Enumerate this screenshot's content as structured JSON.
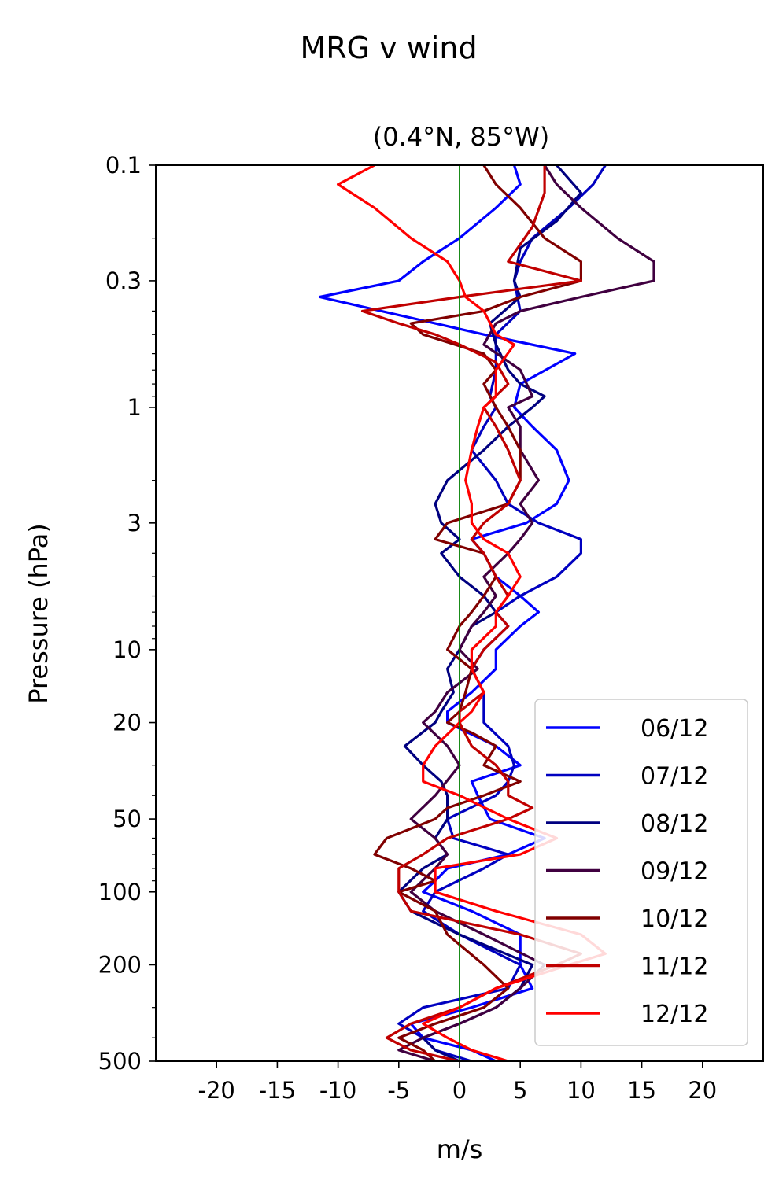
{
  "chart_data": {
    "type": "line",
    "suptitle": "MRG v wind",
    "title": "(0.4°N, 85°W)",
    "xlabel": "m/s",
    "ylabel": "Pressure (hPa)",
    "xlim": [
      -25,
      25
    ],
    "ylim": [
      500,
      0.1
    ],
    "yscale": "log",
    "xticks": [
      -20,
      -15,
      -10,
      -5,
      0,
      5,
      10,
      15,
      20
    ],
    "xtick_labels": [
      "-20",
      "-15",
      "-10",
      "-5",
      "0",
      "5",
      "10",
      "15",
      "20"
    ],
    "yticks": [
      0.1,
      0.3,
      1,
      3,
      10,
      20,
      50,
      100,
      200,
      500
    ],
    "ytick_labels": [
      "0.1",
      "0.3",
      "1",
      "3",
      "10",
      "20",
      "50",
      "100",
      "200",
      "500"
    ],
    "zero_line_color": "#008000",
    "legend_position": "lower right",
    "grid": false,
    "series": [
      {
        "name": "06/12",
        "color": "#0000ff",
        "p": [
          0.1,
          0.12,
          0.15,
          0.2,
          0.25,
          0.3,
          0.35,
          0.5,
          0.6,
          0.8,
          1,
          1.2,
          1.5,
          2,
          2.5,
          3,
          3.5,
          4,
          5,
          6,
          7,
          8,
          10,
          12,
          15,
          18,
          20,
          25,
          30,
          35,
          40,
          50,
          60,
          70,
          80,
          90,
          100,
          120,
          150,
          200,
          250,
          300,
          350,
          400,
          450,
          500
        ],
        "v": [
          4.5,
          5,
          3,
          0,
          -3,
          -5,
          -11.5,
          2,
          9.5,
          5,
          4.5,
          6,
          8,
          9,
          8,
          5.5,
          1,
          2,
          3,
          5,
          6.5,
          5,
          3,
          3,
          1,
          -1,
          -1,
          3,
          5,
          1,
          1.5,
          2.5,
          7,
          4,
          -1,
          -2,
          -3,
          1,
          5,
          5,
          6,
          1,
          -4,
          -3,
          1,
          3
        ]
      },
      {
        "name": "07/12",
        "color": "#0000c0",
        "p": [
          0.1,
          0.12,
          0.15,
          0.2,
          0.25,
          0.3,
          0.4,
          0.5,
          0.7,
          0.9,
          1,
          1.2,
          1.5,
          2,
          2.5,
          3,
          3.5,
          4,
          5,
          6,
          7,
          8,
          10,
          12,
          15,
          20,
          25,
          30,
          35,
          40,
          50,
          60,
          70,
          80,
          100,
          120,
          150,
          200,
          250,
          300,
          350,
          400,
          450,
          500
        ],
        "v": [
          12,
          11,
          9,
          6,
          5,
          4.5,
          5,
          3,
          3,
          2.5,
          3,
          2,
          1,
          3,
          4,
          6.5,
          10,
          10,
          8,
          5,
          3,
          4,
          2,
          1,
          2,
          2,
          4,
          4.5,
          4,
          3,
          -1,
          -0.5,
          4,
          2,
          -2,
          -3,
          0,
          5,
          4,
          -3,
          -5,
          -3,
          -2,
          1
        ]
      },
      {
        "name": "08/12",
        "color": "#000080",
        "p": [
          0.1,
          0.13,
          0.17,
          0.22,
          0.3,
          0.35,
          0.45,
          0.55,
          0.7,
          0.8,
          0.9,
          1,
          1.2,
          1.5,
          2,
          2.5,
          3,
          3.5,
          4,
          5,
          6,
          7,
          8,
          10,
          12,
          15,
          18,
          20,
          25,
          30,
          35,
          40,
          50,
          60,
          70,
          80,
          100,
          120,
          150,
          200,
          250,
          300,
          350,
          400,
          450,
          500
        ],
        "v": [
          8,
          10,
          8,
          5,
          4.5,
          5,
          2.5,
          3,
          4,
          5,
          7,
          6,
          4,
          2,
          -1,
          -2,
          -1.5,
          0,
          -1.5,
          0,
          2,
          3,
          1,
          0,
          -1,
          -0.5,
          -1.5,
          -2,
          -4.5,
          -3,
          -1.5,
          -1,
          -1,
          -2,
          -1,
          -3,
          -5,
          -4,
          0,
          6,
          5,
          3,
          0,
          -3,
          -2,
          0
        ]
      },
      {
        "name": "09/12",
        "color": "#400040",
        "p": [
          0.1,
          0.12,
          0.15,
          0.2,
          0.25,
          0.3,
          0.35,
          0.4,
          0.45,
          0.55,
          0.7,
          0.9,
          1,
          1.2,
          1.5,
          2,
          2.5,
          3,
          3.5,
          4,
          5,
          6,
          7,
          8,
          10,
          12,
          15,
          18,
          20,
          25,
          30,
          40,
          50,
          60,
          70,
          80,
          100,
          120,
          150,
          200,
          250,
          300,
          350,
          400,
          450,
          500
        ],
        "v": [
          7,
          8,
          10,
          13,
          16,
          16,
          10,
          5,
          3,
          2,
          5,
          6,
          4,
          5,
          5,
          6.5,
          5,
          6,
          5,
          4,
          2,
          3,
          2,
          1,
          0,
          1.5,
          -1,
          -2,
          -3,
          -1,
          0,
          -2,
          -4,
          -2,
          -1,
          -2,
          -4,
          -2,
          2,
          7,
          5,
          3,
          0,
          -3,
          -5,
          -2
        ]
      },
      {
        "name": "10/12",
        "color": "#800000",
        "p": [
          0.1,
          0.12,
          0.15,
          0.2,
          0.25,
          0.3,
          0.35,
          0.4,
          0.45,
          0.5,
          0.6,
          0.7,
          0.8,
          1,
          1.2,
          1.5,
          2,
          2.5,
          3,
          3.5,
          4,
          5,
          6,
          7,
          8,
          10,
          12,
          15,
          18,
          20,
          22,
          25,
          30,
          35,
          40,
          45,
          50,
          60,
          70,
          80,
          90,
          100,
          120,
          150,
          200,
          250,
          300,
          350,
          400,
          450,
          500
        ],
        "v": [
          2,
          3,
          5,
          7,
          10,
          10,
          5,
          2,
          -4,
          -3,
          2,
          3,
          2,
          3,
          4,
          5,
          5,
          4,
          -1,
          -2,
          2,
          3,
          2,
          1,
          0,
          -1,
          1,
          0.5,
          0,
          -1,
          1,
          3,
          2,
          5,
          2,
          -1,
          -2,
          -6,
          -7,
          -4,
          -2,
          -5,
          -2,
          -1,
          2,
          4,
          2,
          -2,
          -5,
          -3,
          -2
        ]
      },
      {
        "name": "11/12",
        "color": "#c00000",
        "p": [
          0.1,
          0.13,
          0.18,
          0.25,
          0.3,
          0.35,
          0.4,
          0.45,
          0.5,
          0.55,
          0.65,
          0.8,
          1,
          1.2,
          1.5,
          2,
          2.5,
          3,
          3.5,
          4,
          5,
          6,
          7,
          8,
          10,
          12,
          15,
          18,
          20,
          25,
          30,
          35,
          40,
          45,
          50,
          60,
          70,
          80,
          100,
          120,
          150,
          180,
          200,
          250,
          300,
          350,
          400,
          450,
          500
        ],
        "v": [
          7,
          7,
          6,
          4,
          10,
          0,
          -8,
          -5,
          -2,
          0,
          3,
          4,
          2,
          3,
          4,
          5,
          4,
          2,
          1,
          2,
          3,
          4,
          3,
          4,
          2,
          1,
          2,
          0,
          0,
          1,
          3,
          4,
          4,
          6,
          4,
          -1,
          -3,
          -5,
          -5,
          -4,
          5,
          10,
          8,
          3,
          0,
          -4,
          -6,
          -4,
          0
        ]
      },
      {
        "name": "12/12",
        "color": "#ff0000",
        "p": [
          0.1,
          0.12,
          0.15,
          0.2,
          0.25,
          0.3,
          0.35,
          0.4,
          0.5,
          0.55,
          0.7,
          0.9,
          1,
          1.2,
          1.5,
          2,
          2.5,
          3,
          3.5,
          4,
          5,
          6,
          7,
          8,
          10,
          12,
          15,
          18,
          20,
          25,
          30,
          35,
          40,
          50,
          60,
          70,
          80,
          100,
          120,
          150,
          180,
          200,
          250,
          300,
          350,
          400,
          450,
          500
        ],
        "v": [
          -7,
          -10,
          -7,
          -4,
          -1,
          0,
          0.5,
          2,
          3,
          4.5,
          3,
          3,
          2,
          1.5,
          1,
          0.5,
          1,
          1,
          2,
          4,
          5,
          4,
          3,
          3,
          1,
          1,
          2,
          1,
          0,
          -2,
          -3,
          -3,
          0,
          4,
          8,
          5,
          -2,
          -2,
          3,
          10,
          12,
          9,
          3,
          0,
          -3,
          -1,
          1,
          4
        ]
      }
    ]
  }
}
